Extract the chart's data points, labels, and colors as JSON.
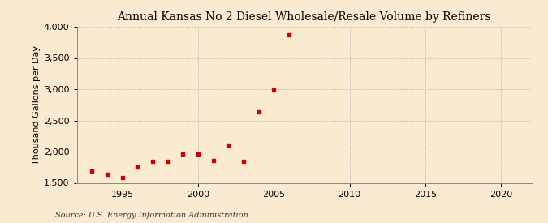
{
  "title": "Annual Kansas No 2 Diesel Wholesale/Resale Volume by Refiners",
  "ylabel": "Thousand Gallons per Day",
  "source": "Source: U.S. Energy Information Administration",
  "background_color": "#faebd0",
  "years": [
    1993,
    1994,
    1995,
    1996,
    1997,
    1998,
    1999,
    2000,
    2001,
    2002,
    2003,
    2004,
    2005,
    2006
  ],
  "values": [
    1690,
    1630,
    1590,
    1750,
    1840,
    1840,
    1960,
    1960,
    1860,
    2110,
    1840,
    2640,
    2990,
    3870
  ],
  "marker_color": "#cc0000",
  "xlim": [
    1992,
    2022
  ],
  "ylim": [
    1500,
    4000
  ],
  "xticks": [
    1995,
    2000,
    2005,
    2010,
    2015,
    2020
  ],
  "yticks": [
    1500,
    2000,
    2500,
    3000,
    3500,
    4000
  ],
  "grid_color": "#bbbbbb",
  "title_fontsize": 10,
  "label_fontsize": 8,
  "tick_fontsize": 8,
  "source_fontsize": 7
}
